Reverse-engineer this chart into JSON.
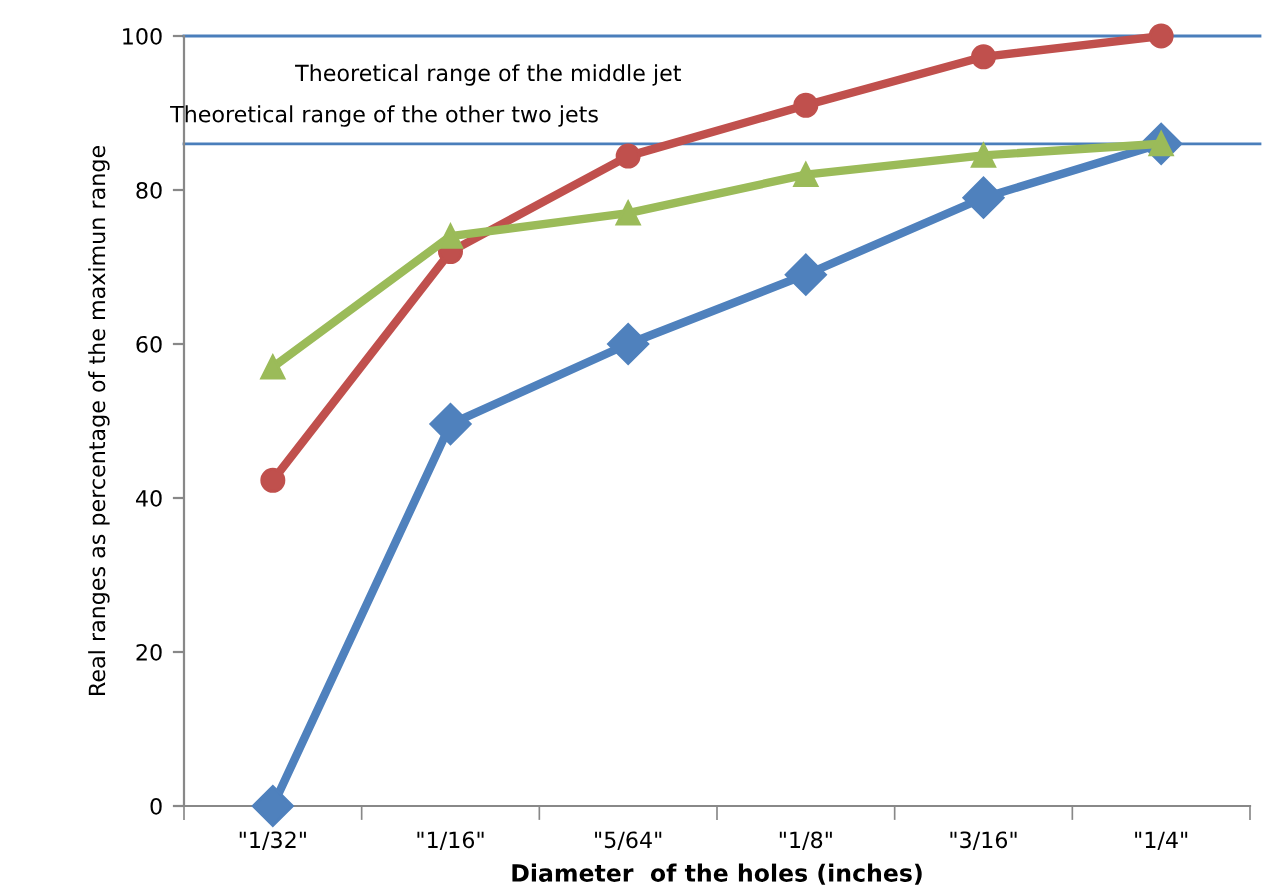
{
  "chart_data": {
    "type": "line",
    "xlabel": "Diameter  of the holes (inches)",
    "ylabel": "Real ranges as percentage of the maximun range",
    "categories": [
      "\"1/32\"",
      "\"1/16\"",
      "\"5/64\"",
      "\"1/8\"",
      "\"3/16\"",
      "\"1/4\""
    ],
    "series": [
      {
        "color": "#4f81bd",
        "marker": "diamond",
        "values": [
          0,
          49.6,
          60,
          69,
          79,
          86
        ]
      },
      {
        "color": "#c0504d",
        "marker": "circle",
        "values": [
          42.3,
          72,
          84.4,
          91,
          97.3,
          100
        ]
      },
      {
        "color": "#9bbb59",
        "marker": "triangle",
        "values": [
          57,
          74,
          77,
          82,
          84.5,
          86
        ]
      }
    ],
    "ylim": [
      0,
      100
    ],
    "yticks": [
      0,
      20,
      40,
      60,
      80,
      100
    ],
    "ref_lines": [
      {
        "axis": "y",
        "value": 100,
        "label": "Theoretical range of the middle jet",
        "color": "#4a7ebb"
      },
      {
        "axis": "y",
        "value": 86,
        "label": "Theoretical range of the other two jets",
        "color": "#4a7ebb"
      }
    ],
    "grid": false,
    "legend": false
  }
}
